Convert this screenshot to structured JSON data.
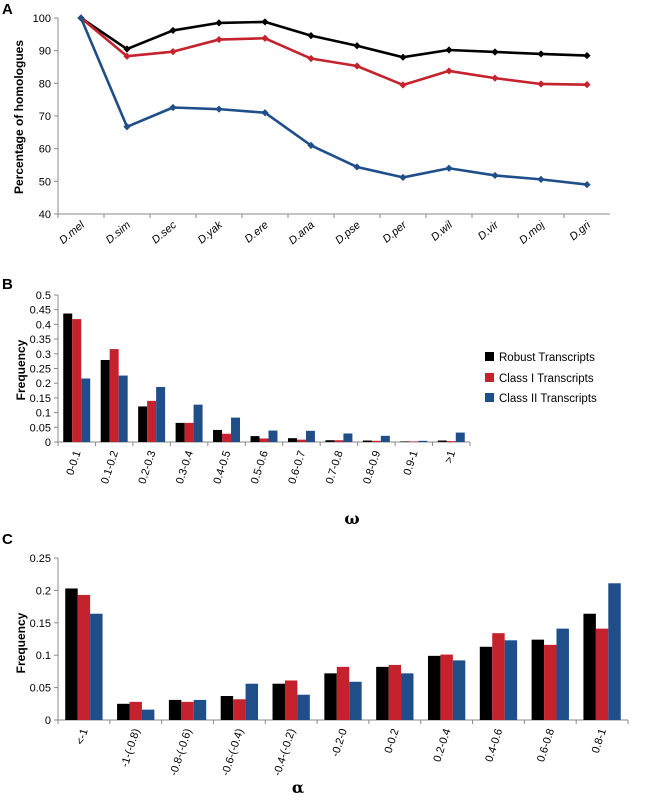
{
  "colors": {
    "black": "#000000",
    "red": "#c4232e",
    "blue": "#1f4e89",
    "axis": "#888888"
  },
  "legend": [
    "Robust Transcripts",
    "Class I Transcripts",
    "Class II Transcripts"
  ],
  "chart_data": [
    {
      "panel": "A",
      "type": "line",
      "ylabel": "Percentage of homologues",
      "xlabel": "",
      "ylim": [
        40,
        100
      ],
      "yticks": [
        40,
        50,
        60,
        70,
        80,
        90,
        100
      ],
      "categories": [
        "D.mel",
        "D.sim",
        "D.sec",
        "D.yak",
        "D.ere",
        "D.ana",
        "D.pse",
        "D.per",
        "D.wil",
        "D.vir",
        "D.moj",
        "D.gri"
      ],
      "series": [
        {
          "color": "#000000",
          "values": [
            100,
            90.5,
            96.2,
            98.5,
            98.8,
            94.6,
            91.5,
            88.0,
            90.2,
            89.6,
            89.0,
            88.5
          ]
        },
        {
          "color": "#c4232e",
          "values": [
            100,
            88.3,
            89.7,
            93.4,
            93.8,
            87.6,
            85.3,
            79.5,
            83.8,
            81.6,
            79.8,
            79.6
          ]
        },
        {
          "color": "#1f4e89",
          "values": [
            100,
            66.7,
            72.6,
            72.1,
            71.0,
            61.0,
            54.4,
            51.2,
            54.0,
            51.8,
            50.6,
            49.0
          ]
        }
      ],
      "grid": false,
      "marker": "diamond"
    },
    {
      "panel": "B",
      "type": "bar",
      "ylabel": "Frequency",
      "xlabel": "ω",
      "ylim": [
        0,
        0.5
      ],
      "yticks": [
        "0",
        "0.05",
        "0.1",
        "0.15",
        "0.2",
        "0.25",
        "0.3",
        "0.35",
        "0.4",
        "0.45",
        "0.5"
      ],
      "categories": [
        "0-0.1",
        "0.1-0.2",
        "0.2-0.3",
        "0.3-0.4",
        "0.4-0.5",
        "0.5-0.6",
        "0.6-0.7",
        "0.7-0.8",
        "0.8-0.9",
        "0.9-1",
        ">1"
      ],
      "series": [
        {
          "name": "Robust Transcripts",
          "color": "#000000",
          "values": [
            0.437,
            0.279,
            0.121,
            0.065,
            0.041,
            0.02,
            0.013,
            0.006,
            0.005,
            0.002,
            0.005
          ]
        },
        {
          "name": "Class I Transcripts",
          "color": "#c4232e",
          "values": [
            0.418,
            0.316,
            0.14,
            0.065,
            0.028,
            0.012,
            0.008,
            0.006,
            0.004,
            0.002,
            0.003
          ]
        },
        {
          "name": "Class II Transcripts",
          "color": "#1f4e89",
          "values": [
            0.216,
            0.226,
            0.187,
            0.127,
            0.083,
            0.039,
            0.038,
            0.029,
            0.021,
            0.004,
            0.032
          ]
        }
      ],
      "legend_position": "right",
      "grid": false
    },
    {
      "panel": "C",
      "type": "bar",
      "ylabel": "Frequency",
      "xlabel": "α",
      "ylim": [
        0,
        0.25
      ],
      "yticks": [
        "0",
        "0.05",
        "0.1",
        "0.15",
        "0.2",
        "0.25"
      ],
      "categories": [
        "<-1",
        "-1-(-0.8)",
        "-0.8-(-0.6)",
        "-0.6-(-0.4)",
        "-0.4-(-0.2)",
        "-0.2-0",
        "0-0.2",
        "0.2-0.4",
        "0.4-0.6",
        "0.6-0.8",
        "0.8-1"
      ],
      "series": [
        {
          "name": "Robust Transcripts",
          "color": "#000000",
          "values": [
            0.203,
            0.025,
            0.031,
            0.037,
            0.056,
            0.072,
            0.082,
            0.099,
            0.113,
            0.124,
            0.164
          ]
        },
        {
          "name": "Class I Transcripts",
          "color": "#c4232e",
          "values": [
            0.193,
            0.028,
            0.028,
            0.032,
            0.061,
            0.082,
            0.085,
            0.101,
            0.134,
            0.116,
            0.141
          ]
        },
        {
          "name": "Class II Transcripts",
          "color": "#1f4e89",
          "values": [
            0.164,
            0.016,
            0.031,
            0.056,
            0.039,
            0.059,
            0.072,
            0.092,
            0.123,
            0.141,
            0.211
          ]
        }
      ],
      "grid": false
    }
  ]
}
